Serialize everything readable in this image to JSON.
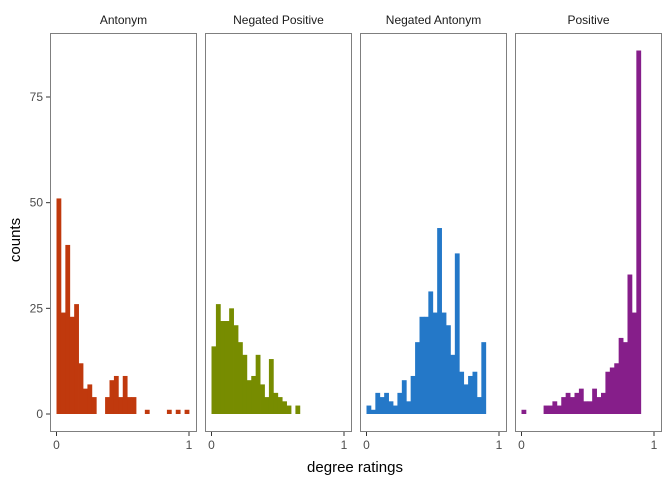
{
  "chart_data": {
    "type": "bar",
    "title": "",
    "xlabel": "degree ratings",
    "ylabel": "counts",
    "xlim": [
      0,
      1
    ],
    "ylim": [
      0,
      86
    ],
    "x_ticks": [
      {
        "value": 0,
        "label": "0"
      },
      {
        "value": 1,
        "label": "1"
      }
    ],
    "y_ticks": [
      {
        "value": 0,
        "label": "0"
      },
      {
        "value": 25,
        "label": "25"
      },
      {
        "value": 50,
        "label": "50"
      },
      {
        "value": 75,
        "label": "75"
      }
    ],
    "bin_width": 0.0333,
    "bin_starts": [
      0.0,
      0.0333,
      0.0667,
      0.1,
      0.1333,
      0.1667,
      0.2,
      0.2333,
      0.2667,
      0.3,
      0.3333,
      0.3667,
      0.4,
      0.4333,
      0.4667,
      0.5,
      0.5333,
      0.5667,
      0.6,
      0.6333,
      0.6667,
      0.7,
      0.7333,
      0.7667,
      0.8,
      0.8333,
      0.8667,
      0.9,
      0.9333,
      0.9667
    ],
    "panels": [
      {
        "name": "Antonym",
        "color": "#c0390d",
        "values": [
          51,
          24,
          40,
          23,
          26,
          12,
          6,
          7,
          4,
          0,
          0,
          4,
          8,
          9,
          4,
          9,
          4,
          4,
          0,
          0,
          1,
          0,
          0,
          0,
          0,
          1,
          0,
          1,
          0,
          1
        ]
      },
      {
        "name": "Negated Positive",
        "color": "#778c00",
        "values": [
          16,
          26,
          22,
          22,
          25,
          21,
          17,
          14,
          8,
          9,
          14,
          7,
          4,
          13,
          5,
          4,
          3,
          2,
          0,
          2,
          0,
          0,
          0,
          0,
          0,
          0,
          0,
          0,
          0,
          0
        ]
      },
      {
        "name": "Negated Antonym",
        "color": "#2478c8",
        "values": [
          2,
          1,
          5,
          4,
          5,
          3,
          2,
          5,
          8,
          3,
          9,
          17,
          23,
          23,
          29,
          24,
          44,
          24,
          21,
          14,
          38,
          10,
          7,
          9,
          10,
          4,
          17,
          0,
          0,
          0
        ]
      },
      {
        "name": "Positive",
        "color": "#861e8a",
        "values": [
          1,
          0,
          0,
          0,
          0,
          2,
          2,
          3,
          2,
          4,
          5,
          4,
          5,
          6,
          3,
          3,
          6,
          4,
          5,
          10,
          11,
          12,
          18,
          17,
          33,
          24,
          86,
          0,
          0,
          0
        ]
      }
    ]
  }
}
